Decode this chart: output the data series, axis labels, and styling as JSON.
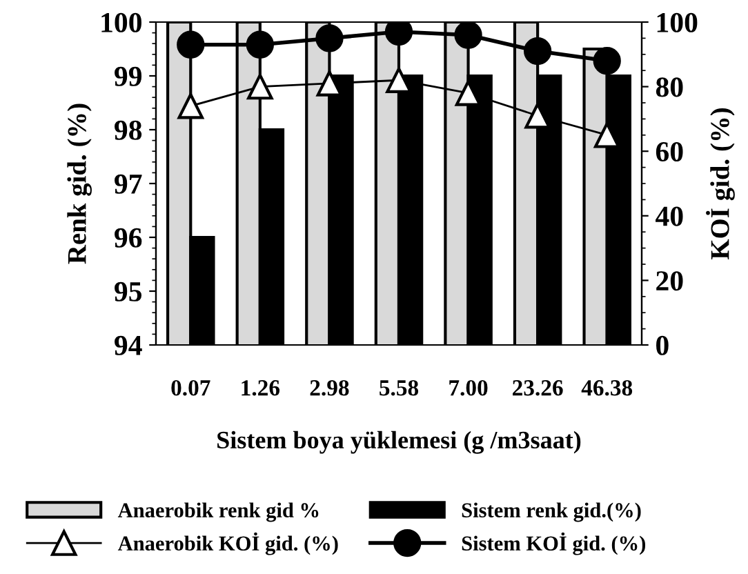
{
  "chart_data": {
    "type": "bar",
    "xlabel": "Sistem boya yüklemesi (g /m3saat)",
    "ylabel": "Renk gid. (%)",
    "y2label": "KOİ gid. (%)",
    "categories": [
      "0.07",
      "1.26",
      "2.98",
      "5.58",
      "7.00",
      "23.26",
      "46.38"
    ],
    "series": [
      {
        "name": "Anaerobik renk gid %",
        "color": "#d9d9d9",
        "values": [
          100,
          100,
          100,
          100,
          100,
          100,
          99.5
        ]
      },
      {
        "name": "Sistem renk gid.(%)",
        "color": "#000000",
        "values": [
          96,
          98,
          99,
          99,
          99,
          99,
          99
        ]
      },
      {
        "name": "Anaerobik KOİ gid. (%)",
        "type": "line",
        "axis": "y2",
        "color": "#000000",
        "marker": "triangle",
        "values": [
          74,
          80,
          81,
          82,
          78,
          71,
          65
        ]
      },
      {
        "name": "Sistem KOİ gid. (%)",
        "type": "line",
        "axis": "y2",
        "color": "#000000",
        "marker": "circle",
        "values": [
          93,
          93,
          95,
          97,
          96,
          91,
          88
        ]
      }
    ],
    "ylim": [
      94,
      100
    ],
    "yticks": [
      94,
      95,
      96,
      97,
      98,
      99,
      100
    ],
    "y2lim": [
      0,
      100
    ],
    "y2ticks": [
      0,
      20,
      40,
      60,
      80,
      100
    ],
    "grid": false,
    "legend": "bottom"
  }
}
